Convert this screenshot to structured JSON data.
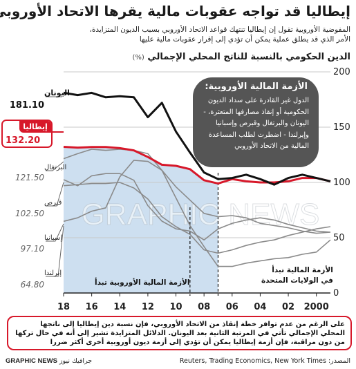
{
  "title": "إيطاليا قد تواجه عقوبات مالية يقرها الاتحاد الأوروبي",
  "subtitle_lines": [
    "المفوضية الأوروبية تقول إن إيطاليا تنتهك قواعد الاتحاد الأوروبي بسبب الديون المتزايدة،",
    "الأمر الذي قد يطلق عملية يمكن أن تؤدي إلى إقرار عقوبات مالية عليها"
  ],
  "chart_title": "الدين الحكومي بالنسبة للناتج المحلي الإجمالي",
  "chart_unit": "(%)",
  "callout": {
    "title": "الأزمة المالية الأوروبية:",
    "body": "الدول غير القادرة على سداد الديون الحكومية أو إنقاذ مصارفها المتعثرة، - اليونان والبرتغال وقبرص وإسبانيا وإيرلندا - اضطرت لطلب المساعدة المالية من الاتحاد الأوروبي"
  },
  "annotations": {
    "eu_crisis": "الأزمة المالية الأوروبية تبدأ",
    "us_crisis": [
      "الأزمة المالية تبدأ",
      "في الولايات المتحدة"
    ]
  },
  "footer_text": "على الرغم من عدم توافر خطة إنقاذ من الاتحاد الأوروبي، فإن نسبة دين إيطاليا إلى ناتجها المحلي الإجمالي تأتي في المرتبة الثانية بعد اليونان. الدلائل المتزايدة تشير إلى أنه في حال تركها من دون مراقبة، فإن أزمة إيطاليا يمكن أن تؤدي إلى أزمة ديون أوروبية أخرى أكثر ضررا",
  "source": "المصدر: Reuters, Trading Economics, New York Times",
  "credit": {
    "ar": "جرافيك نيوز",
    "en": "GRAPHIC NEWS"
  },
  "watermark": "GRAPHIC NEWS",
  "colors": {
    "italy": "#d7182a",
    "greece": "#111111",
    "others": "#8a8a8a",
    "shade": "#cddff0",
    "callout": "#555555"
  },
  "chart_data": {
    "type": "line",
    "title": "الدين الحكومي بالنسبة للناتج المحلي الإجمالي",
    "unit": "(%)",
    "x_axis": "reversed",
    "xlim": [
      1999,
      2018
    ],
    "ylim": [
      0,
      200
    ],
    "y_ticks": [
      0,
      50,
      100,
      150,
      200
    ],
    "x_ticks": [
      {
        "value": 2000,
        "label": "2000"
      },
      {
        "value": 2002,
        "label": "02"
      },
      {
        "value": 2004,
        "label": "04"
      },
      {
        "value": 2006,
        "label": "06"
      },
      {
        "value": 2008,
        "label": "08"
      },
      {
        "value": 2010,
        "label": "10"
      },
      {
        "value": 2012,
        "label": "12"
      },
      {
        "value": 2014,
        "label": "14"
      },
      {
        "value": 2016,
        "label": "16"
      },
      {
        "value": 2018,
        "label": "18"
      }
    ],
    "shaded_ranges": [
      [
        2007,
        2018
      ]
    ],
    "event_markers": [
      {
        "x": 2007,
        "label": "الأزمة المالية تبدأ في الولايات المتحدة"
      },
      {
        "x": 2009,
        "label": "الأزمة المالية الأوروبية تبدأ"
      }
    ],
    "grid": "horizontal",
    "legend": "inline-left",
    "series": [
      {
        "name": "اليونان",
        "label_value": "181.10",
        "highlight": "greece",
        "points": [
          [
            1999,
            101
          ],
          [
            2000,
            104
          ],
          [
            2001,
            107
          ],
          [
            2002,
            104
          ],
          [
            2003,
            98
          ],
          [
            2004,
            103
          ],
          [
            2005,
            107
          ],
          [
            2006,
            104
          ],
          [
            2007,
            103
          ],
          [
            2008,
            109
          ],
          [
            2009,
            127
          ],
          [
            2010,
            146
          ],
          [
            2011,
            172
          ],
          [
            2012,
            159
          ],
          [
            2013,
            177
          ],
          [
            2014,
            178
          ],
          [
            2015,
            177
          ],
          [
            2016,
            181
          ],
          [
            2017,
            179
          ],
          [
            2018,
            181.1
          ]
        ]
      },
      {
        "name": "إيطاليا",
        "label_value": "132.20",
        "highlight": "italy",
        "points": [
          [
            1999,
            101
          ],
          [
            2000,
            104
          ],
          [
            2001,
            104
          ],
          [
            2002,
            101
          ],
          [
            2003,
            100
          ],
          [
            2004,
            100
          ],
          [
            2005,
            101
          ],
          [
            2006,
            103
          ],
          [
            2007,
            99
          ],
          [
            2008,
            102
          ],
          [
            2009,
            112
          ],
          [
            2010,
            115
          ],
          [
            2011,
            116
          ],
          [
            2012,
            123
          ],
          [
            2013,
            129
          ],
          [
            2014,
            131
          ],
          [
            2015,
            132
          ],
          [
            2016,
            132
          ],
          [
            2017,
            131.5
          ],
          [
            2018,
            132.2
          ]
        ]
      },
      {
        "name": "البرتغال",
        "label_value": "121.50",
        "points": [
          [
            1999,
            55
          ],
          [
            2000,
            54
          ],
          [
            2001,
            56
          ],
          [
            2002,
            59
          ],
          [
            2003,
            61
          ],
          [
            2004,
            63
          ],
          [
            2005,
            68
          ],
          [
            2006,
            70
          ],
          [
            2007,
            69
          ],
          [
            2008,
            72
          ],
          [
            2009,
            84
          ],
          [
            2010,
            96
          ],
          [
            2011,
            111
          ],
          [
            2012,
            126
          ],
          [
            2013,
            129
          ],
          [
            2014,
            130
          ],
          [
            2015,
            129
          ],
          [
            2016,
            130
          ],
          [
            2017,
            126
          ],
          [
            2018,
            121.5
          ]
        ]
      },
      {
        "name": "قبرص",
        "label_value": "102.50",
        "points": [
          [
            1999,
            55
          ],
          [
            2000,
            56
          ],
          [
            2001,
            59
          ],
          [
            2002,
            62
          ],
          [
            2003,
            66
          ],
          [
            2004,
            68
          ],
          [
            2005,
            66
          ],
          [
            2006,
            63
          ],
          [
            2007,
            58
          ],
          [
            2008,
            48
          ],
          [
            2009,
            56
          ],
          [
            2010,
            58
          ],
          [
            2011,
            65
          ],
          [
            2012,
            79
          ],
          [
            2013,
            102
          ],
          [
            2014,
            108
          ],
          [
            2015,
            108
          ],
          [
            2016,
            106
          ],
          [
            2017,
            97
          ],
          [
            2018,
            102.5
          ]
        ]
      },
      {
        "name": "إسبانيا",
        "label_value": "97.10",
        "points": [
          [
            1999,
            60
          ],
          [
            2000,
            58
          ],
          [
            2001,
            55
          ],
          [
            2002,
            52
          ],
          [
            2003,
            48
          ],
          [
            2004,
            46
          ],
          [
            2005,
            43
          ],
          [
            2006,
            39
          ],
          [
            2007,
            36
          ],
          [
            2008,
            39
          ],
          [
            2009,
            53
          ],
          [
            2010,
            60
          ],
          [
            2011,
            69
          ],
          [
            2012,
            85
          ],
          [
            2013,
            95
          ],
          [
            2014,
            100
          ],
          [
            2015,
            99
          ],
          [
            2016,
            99
          ],
          [
            2017,
            98
          ],
          [
            2018,
            97.1
          ]
        ]
      },
      {
        "name": "إيرلندا",
        "label_value": "64.80",
        "points": [
          [
            1999,
            48
          ],
          [
            2000,
            37
          ],
          [
            2001,
            35
          ],
          [
            2002,
            32
          ],
          [
            2003,
            31
          ],
          [
            2004,
            29
          ],
          [
            2005,
            27
          ],
          [
            2006,
            24
          ],
          [
            2007,
            24
          ],
          [
            2008,
            42
          ],
          [
            2009,
            61
          ],
          [
            2010,
            86
          ],
          [
            2011,
            111
          ],
          [
            2012,
            119
          ],
          [
            2013,
            120
          ],
          [
            2014,
            105
          ],
          [
            2015,
            77
          ],
          [
            2016,
            74
          ],
          [
            2017,
            68
          ],
          [
            2018,
            64.8
          ]
        ]
      }
    ]
  }
}
